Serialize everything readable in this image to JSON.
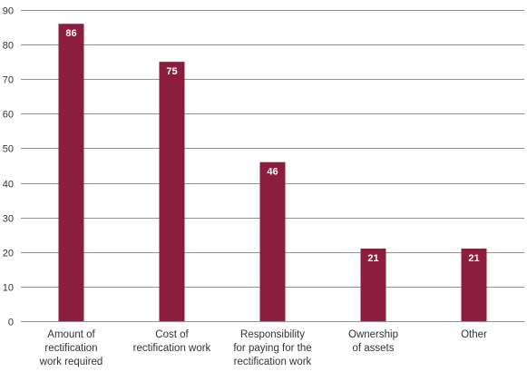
{
  "chart_data": {
    "type": "bar",
    "title": "",
    "xlabel": "",
    "ylabel": "",
    "categories": [
      [
        "Amount of",
        "rectification",
        "work required"
      ],
      [
        "Cost of",
        "rectification work"
      ],
      [
        "Responsibility",
        "for paying for the",
        "rectification work"
      ],
      [
        "Ownership",
        "of assets"
      ],
      [
        "Other"
      ]
    ],
    "values": [
      86,
      75,
      46,
      21,
      21
    ],
    "ylim": [
      0,
      90
    ],
    "yticks": [
      0,
      10,
      20,
      30,
      40,
      50,
      60,
      70,
      80,
      90
    ],
    "grid": true,
    "legend": "none",
    "bar_color": "#8b1e3f",
    "grid_color": "#222222"
  }
}
